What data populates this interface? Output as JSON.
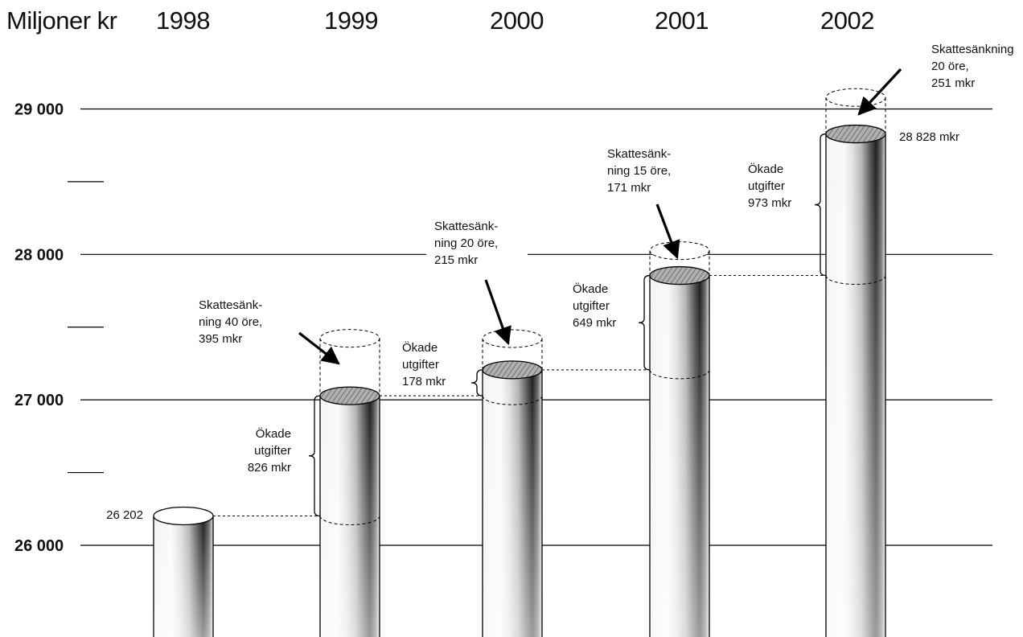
{
  "chart_data": {
    "type": "bar",
    "title": "",
    "ylabel": "Miljoner kr",
    "xlabel": "",
    "categories": [
      "1998",
      "1999",
      "2000",
      "2001",
      "2002"
    ],
    "values": [
      26202,
      27028,
      27206,
      27855,
      28828
    ],
    "ylim": [
      25450,
      29400
    ],
    "y_ticks": [
      {
        "value": 26000,
        "label": "26 000"
      },
      {
        "value": 27000,
        "label": "27 000"
      },
      {
        "value": 28000,
        "label": "28 000"
      },
      {
        "value": 29000,
        "label": "29 000"
      }
    ],
    "y_minor_ticks": [
      26500,
      27500,
      28500
    ],
    "grid": true,
    "start_label": "26 202",
    "end_label": "28 828 mkr",
    "series": [
      {
        "name": "Ökade utgifter",
        "values": [
          null,
          826,
          178,
          649,
          973
        ]
      },
      {
        "name": "Skattesänkning",
        "values": [
          null,
          395,
          215,
          171,
          251
        ]
      }
    ],
    "annotations": [
      {
        "category": "1999",
        "tax_lines": [
          "Skattesänk-",
          "ning 40 öre,",
          "395 mkr"
        ],
        "spend_lines": [
          "Ökade",
          "utgifter",
          "826 mkr"
        ]
      },
      {
        "category": "2000",
        "tax_lines": [
          "Skattesänk-",
          "ning 20 öre,",
          "215 mkr"
        ],
        "spend_lines": [
          "Ökade",
          "utgifter",
          "178 mkr"
        ]
      },
      {
        "category": "2001",
        "tax_lines": [
          "Skattesänk-",
          "ning 15 öre,",
          "171 mkr"
        ],
        "spend_lines": [
          "Ökade",
          "utgifter",
          "649 mkr"
        ]
      },
      {
        "category": "2002",
        "tax_lines": [
          "Skattesänkning",
          "20 öre,",
          "251 mkr"
        ],
        "spend_lines": [
          "Ökade",
          "utgifter",
          "973 mkr"
        ]
      }
    ]
  }
}
